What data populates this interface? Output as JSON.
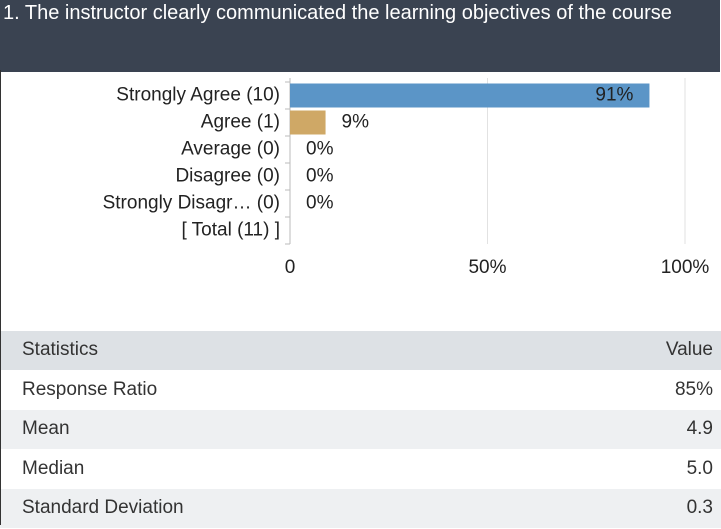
{
  "chart_data": {
    "type": "bar",
    "orientation": "horizontal",
    "title": "1. The instructor clearly communicated the learning objectives of the course",
    "categories": [
      "Strongly Agree (10)",
      "Agree (1)",
      "Average (0)",
      "Disagree (0)",
      "Strongly Disagr… (0)",
      "[ Total (11) ]"
    ],
    "values": [
      91,
      9,
      0,
      0,
      0,
      null
    ],
    "value_labels": [
      "91%",
      "9%",
      "0%",
      "0%",
      "0%",
      null
    ],
    "colors": [
      "#5b95c7",
      "#cfa866",
      "#5b95c7",
      "#5b95c7",
      "#5b95c7",
      null
    ],
    "xlim": [
      0,
      100
    ],
    "xticks": [
      0,
      {
        "value": 50,
        "label": "50%"
      },
      {
        "value": 100,
        "label": "100%"
      }
    ],
    "grid": true
  },
  "table": {
    "header": [
      "Statistics",
      "Value"
    ],
    "rows": [
      [
        "Response Ratio",
        "85%"
      ],
      [
        "Mean",
        "4.9"
      ],
      [
        "Median",
        "5.0"
      ],
      [
        "Standard Deviation",
        "0.3"
      ]
    ]
  }
}
